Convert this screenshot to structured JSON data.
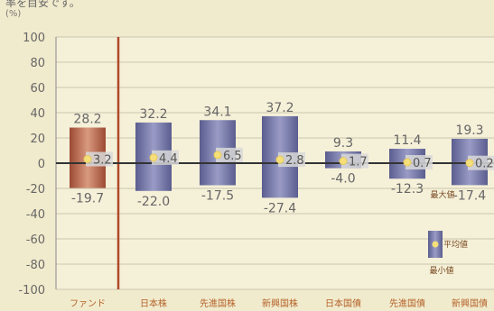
{
  "caption": "率を目安です。",
  "chart_data": {
    "type": "bar",
    "unit_label": "(%)",
    "ylim": [
      -100,
      100
    ],
    "yticks": [
      "100",
      "80",
      "60",
      "40",
      "20",
      "0",
      "-20",
      "-40",
      "-60",
      "-80",
      "-100"
    ],
    "categories": [
      "ファンド",
      "日本株",
      "先進国株",
      "新興国株",
      "日本国債",
      "先進国債",
      "新興国債"
    ],
    "max": [
      28.2,
      32.2,
      34.1,
      37.2,
      9.3,
      11.4,
      19.3
    ],
    "min": [
      -19.7,
      -22.0,
      -17.5,
      -27.4,
      -4.0,
      -12.3,
      -17.4
    ],
    "avg": [
      3.2,
      4.4,
      6.5,
      2.8,
      1.7,
      0.7,
      0.2
    ],
    "max_labels": [
      "28.2",
      "32.2",
      "34.1",
      "37.2",
      "9.3",
      "11.4",
      "19.3"
    ],
    "min_labels": [
      "-19.7",
      "-22.0",
      "-17.5",
      "-27.4",
      "-4.0",
      "-12.3",
      "-17.4"
    ],
    "avg_labels": [
      "3.2",
      "4.4",
      "6.5",
      "2.8",
      "1.7",
      "0.7",
      "0.2"
    ],
    "legend": {
      "max": "最大値",
      "avg": "平均値",
      "min": "最小値"
    },
    "grid": true,
    "colors": {
      "fund": "#b86a4c",
      "asset": "#6f72a4",
      "divider": "#b04a2a",
      "avg_dot": "#f4df7a",
      "avg_band": "#d9d9d9"
    }
  }
}
